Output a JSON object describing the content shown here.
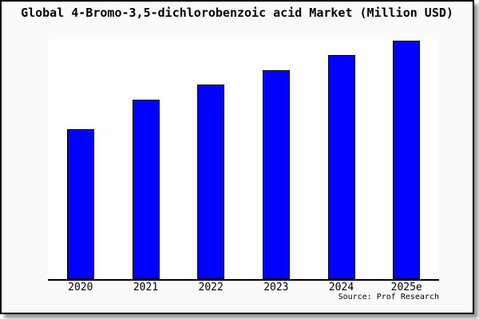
{
  "title": "Global 4-Bromo-3,5-dichlorobenzoic acid Market (Million USD)",
  "chart_data": {
    "type": "bar",
    "title": "Global 4-Bromo-3,5-dichlorobenzoic acid Market (Million USD)",
    "categories": [
      "2020",
      "2021",
      "2022",
      "2023",
      "2024",
      "2025e"
    ],
    "values": [
      188,
      225,
      244,
      262,
      281,
      299
    ],
    "value_note": "no y-axis or data labels shown; values are relative bar heights in screen px",
    "ylim": [
      0,
      301
    ],
    "xlabel": "",
    "ylabel": "",
    "grid": false,
    "legend": false,
    "bar_color": "#0101fe",
    "bar_border_color": "#000000",
    "axis_color": "#000000",
    "plot_background": "#ffffff",
    "frame_background": "#fafafa"
  },
  "footer": {
    "source_label": "Source: Prof Research"
  }
}
